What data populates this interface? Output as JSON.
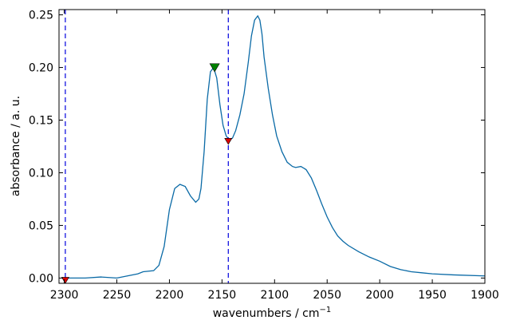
{
  "chart_data": {
    "type": "line",
    "xlabel": "wavenumbers / cm",
    "xlabel_sup": "−1",
    "ylabel": "absorbance / a. u.",
    "xlim": [
      2305,
      1900
    ],
    "ylim": [
      -0.005,
      0.255
    ],
    "x_ticks": [
      2300,
      2250,
      2200,
      2150,
      2100,
      2050,
      2000,
      1950,
      1900
    ],
    "y_ticks": [
      0.0,
      0.05,
      0.1,
      0.15,
      0.2,
      0.25
    ],
    "y_tick_labels": [
      "0.00",
      "0.05",
      "0.10",
      "0.15",
      "0.20",
      "0.25"
    ],
    "series": [
      {
        "color": "#0a6aa6",
        "x": [
          2300,
          2280,
          2265,
          2250,
          2240,
          2230,
          2225,
          2215,
          2210,
          2205,
          2200,
          2195,
          2190,
          2185,
          2180,
          2175,
          2172,
          2170,
          2167,
          2164,
          2161,
          2158,
          2155,
          2152,
          2149,
          2146,
          2143,
          2140,
          2137,
          2133,
          2129,
          2125,
          2122,
          2119,
          2116,
          2114,
          2112,
          2110,
          2106,
          2102,
          2098,
          2093,
          2088,
          2083,
          2080,
          2075,
          2070,
          2065,
          2060,
          2055,
          2050,
          2045,
          2040,
          2035,
          2030,
          2020,
          2010,
          2000,
          1990,
          1980,
          1970,
          1960,
          1950,
          1930,
          1900
        ],
        "y": [
          0.0,
          0.0,
          0.001,
          0.0,
          0.002,
          0.004,
          0.006,
          0.007,
          0.012,
          0.03,
          0.065,
          0.085,
          0.089,
          0.087,
          0.078,
          0.072,
          0.075,
          0.085,
          0.12,
          0.17,
          0.196,
          0.2,
          0.19,
          0.165,
          0.145,
          0.135,
          0.131,
          0.133,
          0.14,
          0.155,
          0.175,
          0.205,
          0.23,
          0.245,
          0.249,
          0.245,
          0.232,
          0.21,
          0.18,
          0.155,
          0.135,
          0.12,
          0.11,
          0.106,
          0.105,
          0.106,
          0.103,
          0.095,
          0.083,
          0.07,
          0.058,
          0.048,
          0.04,
          0.035,
          0.031,
          0.025,
          0.02,
          0.016,
          0.011,
          0.008,
          0.006,
          0.005,
          0.004,
          0.003,
          0.002
        ]
      }
    ],
    "vlines": [
      {
        "x": 2299,
        "color": "#0000dd",
        "style": "dashed"
      },
      {
        "x": 2144,
        "color": "#0000dd",
        "style": "dashed"
      }
    ],
    "markers": [
      {
        "x": 2299,
        "y": -0.002,
        "color": "#dd0000",
        "shape": "triangle-down",
        "size": "small"
      },
      {
        "x": 2144,
        "y": 0.13,
        "color": "#dd0000",
        "shape": "triangle-down",
        "size": "small"
      },
      {
        "x": 2157,
        "y": 0.2,
        "color": "#008000",
        "shape": "triangle-down",
        "size": "large"
      }
    ],
    "grid": false,
    "legend": "none"
  }
}
